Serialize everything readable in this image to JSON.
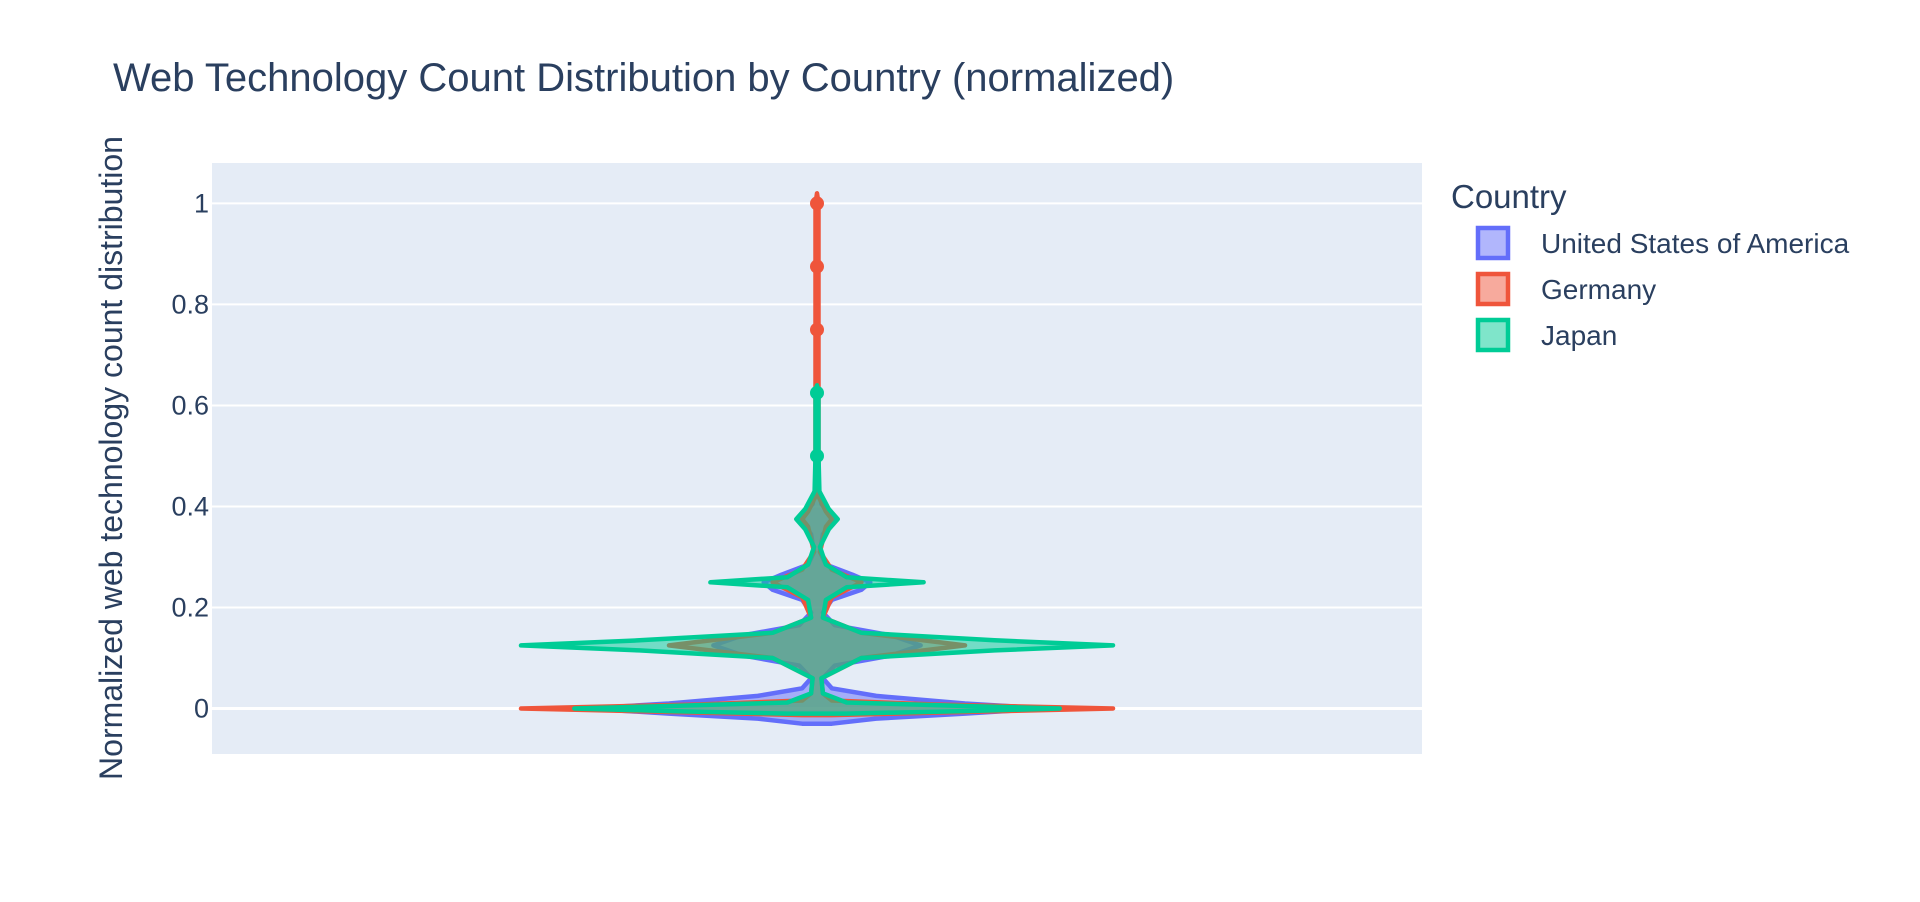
{
  "chart_data": {
    "type": "violin",
    "title": "Web Technology Count Distribution by Country (normalized)",
    "xlabel": "",
    "ylabel": "Normalized web technology count distribution",
    "ylim": [
      -0.09,
      1.08
    ],
    "yticks": [
      0,
      0.2,
      0.4,
      0.6,
      0.8,
      1
    ],
    "ytick_labels": [
      "0",
      "0.2",
      "0.4",
      "0.6",
      "0.8",
      "1"
    ],
    "grid": true,
    "legend": {
      "title": "Country",
      "placement": "right"
    },
    "series": [
      {
        "name": "United States of America",
        "color": "#636efa",
        "fill": "rgba(99,110,250,0.5)",
        "outliers": [],
        "profile": [
          [
            -0.03,
            0.05
          ],
          [
            -0.02,
            0.2
          ],
          [
            -0.01,
            0.5
          ],
          [
            0.0,
            0.78
          ],
          [
            0.01,
            0.5
          ],
          [
            0.025,
            0.2
          ],
          [
            0.04,
            0.05
          ],
          [
            0.06,
            0.02
          ],
          [
            0.085,
            0.06
          ],
          [
            0.105,
            0.25
          ],
          [
            0.125,
            0.35
          ],
          [
            0.145,
            0.25
          ],
          [
            0.165,
            0.06
          ],
          [
            0.19,
            0.02
          ],
          [
            0.215,
            0.05
          ],
          [
            0.235,
            0.15
          ],
          [
            0.25,
            0.18
          ],
          [
            0.265,
            0.12
          ],
          [
            0.285,
            0.03
          ],
          [
            0.31,
            0.01
          ],
          [
            0.345,
            0.02
          ],
          [
            0.375,
            0.06
          ],
          [
            0.405,
            0.015
          ],
          [
            0.44,
            0.005
          ]
        ]
      },
      {
        "name": "Germany",
        "color": "#ef553b",
        "fill": "rgba(239,85,59,0.5)",
        "outliers": [
          0.75,
          0.875,
          1.0
        ],
        "profile": [
          [
            -0.013,
            0.05
          ],
          [
            -0.008,
            0.4
          ],
          [
            0.0,
            1.0
          ],
          [
            0.008,
            0.4
          ],
          [
            0.016,
            0.05
          ],
          [
            0.03,
            0.02
          ],
          [
            0.06,
            0.015
          ],
          [
            0.1,
            0.15
          ],
          [
            0.125,
            0.5
          ],
          [
            0.15,
            0.15
          ],
          [
            0.18,
            0.02
          ],
          [
            0.22,
            0.05
          ],
          [
            0.25,
            0.15
          ],
          [
            0.275,
            0.05
          ],
          [
            0.31,
            0.01
          ],
          [
            0.36,
            0.03
          ],
          [
            0.375,
            0.05
          ],
          [
            0.39,
            0.03
          ],
          [
            0.42,
            0.005
          ],
          [
            0.55,
            0.005
          ],
          [
            0.75,
            0.005
          ],
          [
            0.875,
            0.005
          ],
          [
            1.0,
            0.005
          ],
          [
            1.02,
            0.0
          ]
        ]
      },
      {
        "name": "Japan",
        "color": "#00cc96",
        "fill": "rgba(0,204,150,0.5)",
        "outliers": [
          0.5,
          0.625
        ],
        "profile": [
          [
            -0.01,
            0.1
          ],
          [
            -0.005,
            0.5
          ],
          [
            0.0,
            0.82
          ],
          [
            0.005,
            0.5
          ],
          [
            0.012,
            0.1
          ],
          [
            0.03,
            0.02
          ],
          [
            0.06,
            0.015
          ],
          [
            0.1,
            0.15
          ],
          [
            0.115,
            0.6
          ],
          [
            0.125,
            1.0
          ],
          [
            0.135,
            0.6
          ],
          [
            0.15,
            0.15
          ],
          [
            0.18,
            0.02
          ],
          [
            0.215,
            0.03
          ],
          [
            0.24,
            0.1
          ],
          [
            0.25,
            0.36
          ],
          [
            0.26,
            0.1
          ],
          [
            0.285,
            0.03
          ],
          [
            0.32,
            0.01
          ],
          [
            0.355,
            0.04
          ],
          [
            0.375,
            0.07
          ],
          [
            0.395,
            0.04
          ],
          [
            0.43,
            0.008
          ],
          [
            0.5,
            0.005
          ],
          [
            0.625,
            0.005
          ],
          [
            0.64,
            0.0
          ]
        ]
      }
    ]
  }
}
